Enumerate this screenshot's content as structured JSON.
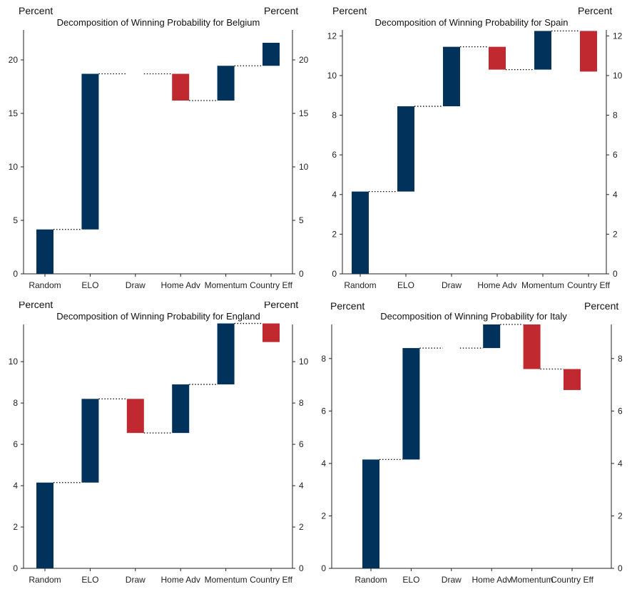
{
  "colors": {
    "positive": "#00325c",
    "negative": "#c0292f"
  },
  "chart_data": [
    {
      "type": "waterfall",
      "title": "Decomposition of Winning Probability for Belgium",
      "ylabel_left": "Percent",
      "ylabel_right": "Percent",
      "ylim": [
        0,
        22.8
      ],
      "yticks": [
        0,
        5,
        10,
        15,
        20
      ],
      "yticklabels": [
        "0",
        "5",
        "10",
        "15",
        "20"
      ],
      "categories": [
        "Random",
        "ELO",
        "Draw",
        "Home Adv",
        "Momentum",
        "Country Eff"
      ],
      "values": [
        4.15,
        14.55,
        0,
        -2.5,
        3.25,
        2.15
      ]
    },
    {
      "type": "waterfall",
      "title": "Decomposition of Winning Probability for Spain",
      "ylabel_left": "Percent",
      "ylabel_right": "Percent",
      "ylim": [
        0,
        12.3
      ],
      "yticks": [
        0,
        2,
        4,
        6,
        8,
        10,
        12
      ],
      "yticklabels": [
        "0",
        "2",
        "4",
        "6",
        "8",
        "10",
        "12"
      ],
      "categories": [
        "Random",
        "ELO",
        "Draw",
        "Home Adv",
        "Momentum",
        "Country Eff"
      ],
      "values": [
        4.15,
        4.3,
        3.0,
        -1.15,
        1.95,
        -2.05
      ]
    },
    {
      "type": "waterfall",
      "title": "Decomposition of Winning Probability for England",
      "ylabel_left": "Percent",
      "ylabel_right": "Percent",
      "ylim": [
        0,
        11.8
      ],
      "yticks": [
        0,
        2,
        4,
        6,
        8,
        10
      ],
      "yticklabels": [
        "0",
        "2",
        "4",
        "6",
        "8",
        "10"
      ],
      "categories": [
        "Random",
        "ELO",
        "Draw",
        "Home Adv",
        "Momentum",
        "Country Eff"
      ],
      "values": [
        4.15,
        4.05,
        -1.65,
        2.35,
        2.95,
        -0.9
      ]
    },
    {
      "type": "waterfall",
      "title": "Decomposition of Winning Probability for Italy",
      "ylabel_left": "Percent",
      "ylabel_right": "Percent",
      "ylim": [
        0,
        9.3
      ],
      "yticks": [
        0,
        2,
        4,
        6,
        8
      ],
      "yticklabels": [
        "0",
        "2",
        "4",
        "6",
        "8"
      ],
      "categories": [
        "Random",
        "ELO",
        "Draw",
        "Home Adv",
        "Momentum",
        "Country Eff"
      ],
      "values": [
        4.15,
        4.25,
        0,
        0.9,
        -1.7,
        -0.8
      ]
    }
  ]
}
